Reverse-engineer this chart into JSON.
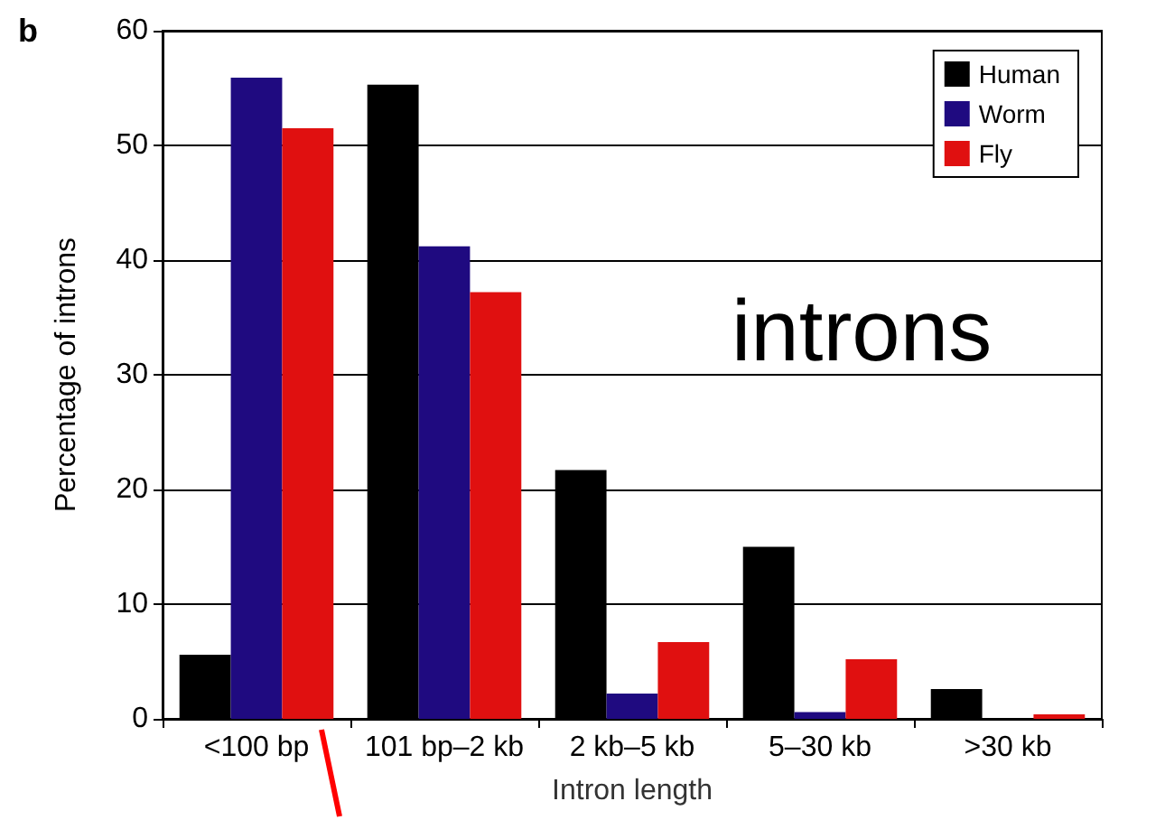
{
  "chart_data": {
    "type": "bar",
    "xlabel": "Intron length",
    "ylabel": "Percentage of introns",
    "annotations": [
      "b",
      "introns"
    ],
    "categories": [
      "<100 bp",
      "101 bp–2 kb",
      "2 kb–5 kb",
      "5–30 kb",
      ">30 kb"
    ],
    "series": [
      {
        "name": "Human",
        "color": "#000000",
        "values": [
          5.6,
          55.3,
          21.7,
          15.0,
          2.6
        ]
      },
      {
        "name": "Worm",
        "color": "#1f0a80",
        "values": [
          55.9,
          41.2,
          2.2,
          0.6,
          0
        ]
      },
      {
        "name": "Fly",
        "color": "#e01010",
        "values": [
          51.5,
          37.2,
          6.7,
          5.2,
          0.4
        ]
      }
    ],
    "ylim": [
      0,
      60
    ],
    "yticks": [
      0,
      10,
      20,
      30,
      40,
      50,
      60
    ],
    "grid": "y",
    "legend": "top right"
  }
}
